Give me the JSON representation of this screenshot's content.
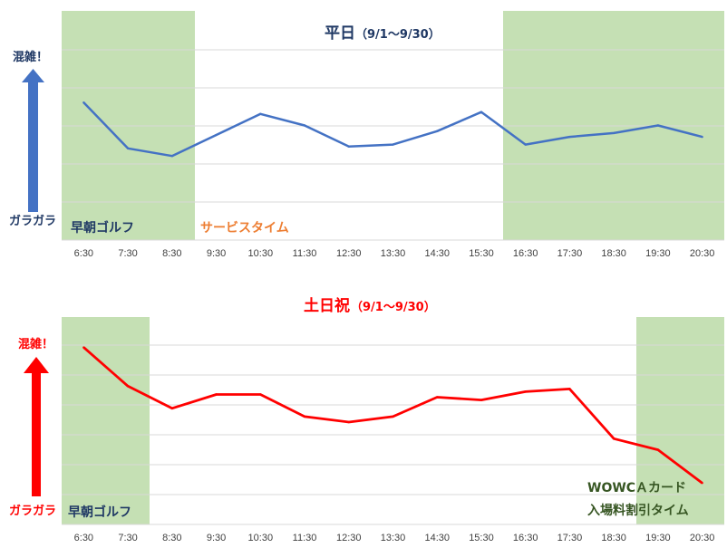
{
  "colors": {
    "weekday_line": "#4472c4",
    "weekend_line": "#ff0000",
    "zone_fill": "#c5e0b4",
    "grid": "#d9d9d9",
    "orange_label": "#ed7d31",
    "dark_label": "#1f3864",
    "green_label": "#375623"
  },
  "chart_data": [
    {
      "type": "line",
      "title": "平日",
      "subtitle": "（9/1～9/30）",
      "categories": [
        "6:30",
        "7:30",
        "8:30",
        "9:30",
        "10:30",
        "11:30",
        "12:30",
        "13:30",
        "14:30",
        "15:30",
        "16:30",
        "17:30",
        "18:30",
        "19:30",
        "20:30"
      ],
      "series": [
        {
          "values": [
            72,
            48,
            44,
            55,
            66,
            60,
            49,
            50,
            57,
            67,
            50,
            54,
            56,
            60,
            54
          ]
        }
      ],
      "ylim": [
        0,
        120
      ],
      "grid": true,
      "y_axis": {
        "top_label": "混雑！",
        "bottom_label": "ガラガラ"
      },
      "zones": [
        {
          "from": "6:30",
          "to": "8:30",
          "label": "早朝ゴルフ"
        },
        {
          "from": "9:30",
          "to": "15:30",
          "label": "サービスタイム"
        },
        {
          "from": "16:30",
          "to": "20:30",
          "label": ""
        }
      ]
    },
    {
      "type": "line",
      "title": "土日祝",
      "subtitle": "（9/1～9/30）",
      "categories": [
        "6:30",
        "7:30",
        "8:30",
        "9:30",
        "10:30",
        "11:30",
        "12:30",
        "13:30",
        "14:30",
        "15:30",
        "16:30",
        "17:30",
        "18:30",
        "19:30",
        "20:30"
      ],
      "series": [
        {
          "values": [
            99,
            85,
            77,
            82,
            82,
            74,
            72,
            74,
            81,
            80,
            83,
            84,
            66,
            62,
            50
          ]
        }
      ],
      "ylim": [
        35,
        110
      ],
      "grid": true,
      "y_axis": {
        "top_label": "混雑！",
        "bottom_label": "ガラガラ"
      },
      "zones": [
        {
          "from": "6:30",
          "to": "7:30",
          "label": "早朝ゴルフ"
        },
        {
          "from": "19:30",
          "to": "20:30",
          "label_lines": [
            "WOWCＡカード",
            "入場料割引タイム"
          ]
        }
      ]
    }
  ]
}
